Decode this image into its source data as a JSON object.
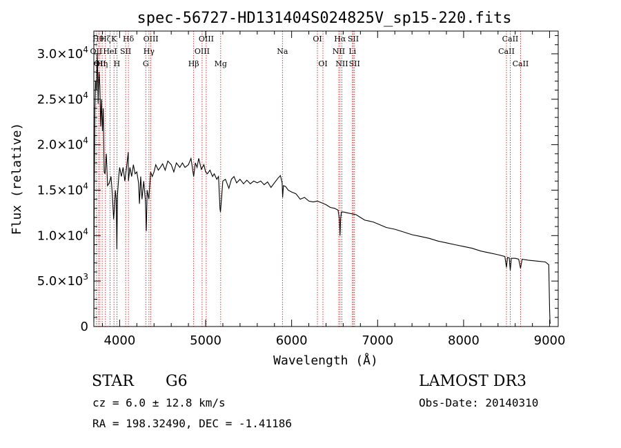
{
  "chart_data": {
    "type": "line",
    "title": "spec-56727-HD131404S024825V_sp15-220.fits",
    "xlabel": "Wavelength (Å)",
    "ylabel": "Flux (relative)",
    "xlim": [
      3700,
      9100
    ],
    "ylim": [
      0,
      32500
    ],
    "x_ticks": [
      4000,
      5000,
      6000,
      7000,
      8000,
      9000
    ],
    "y_ticks": [
      {
        "value": 0,
        "label": "0"
      },
      {
        "value": 5000,
        "label": "5.0×10",
        "exp": "3"
      },
      {
        "value": 10000,
        "label": "1.0×10",
        "exp": "4"
      },
      {
        "value": 15000,
        "label": "1.5×10",
        "exp": "4"
      },
      {
        "value": 20000,
        "label": "2.0×10",
        "exp": "4"
      },
      {
        "value": 25000,
        "label": "2.5×10",
        "exp": "4"
      },
      {
        "value": 30000,
        "label": "3.0×10",
        "exp": "4"
      }
    ],
    "series": [
      {
        "color": "#000000",
        "points": [
          [
            3700,
            500
          ],
          [
            3705,
            15000
          ],
          [
            3712,
            24000
          ],
          [
            3720,
            27000
          ],
          [
            3730,
            26000
          ],
          [
            3740,
            30000
          ],
          [
            3750,
            24500
          ],
          [
            3760,
            28000
          ],
          [
            3770,
            26500
          ],
          [
            3780,
            22000
          ],
          [
            3790,
            25000
          ],
          [
            3800,
            21500
          ],
          [
            3810,
            24000
          ],
          [
            3820,
            17000
          ],
          [
            3830,
            16800
          ],
          [
            3845,
            19000
          ],
          [
            3860,
            15500
          ],
          [
            3880,
            15800
          ],
          [
            3900,
            16500
          ],
          [
            3915,
            14500
          ],
          [
            3930,
            11800
          ],
          [
            3940,
            13000
          ],
          [
            3950,
            15000
          ],
          [
            3960,
            14000
          ],
          [
            3968,
            8500
          ],
          [
            3975,
            14500
          ],
          [
            3990,
            16500
          ],
          [
            4000,
            17500
          ],
          [
            4020,
            16500
          ],
          [
            4040,
            17500
          ],
          [
            4060,
            16000
          ],
          [
            4080,
            17500
          ],
          [
            4100,
            19200
          ],
          [
            4102,
            16000
          ],
          [
            4120,
            17500
          ],
          [
            4140,
            16500
          ],
          [
            4160,
            17800
          ],
          [
            4180,
            16800
          ],
          [
            4200,
            17000
          ],
          [
            4220,
            15800
          ],
          [
            4230,
            13500
          ],
          [
            4245,
            16500
          ],
          [
            4260,
            14000
          ],
          [
            4280,
            16000
          ],
          [
            4300,
            13800
          ],
          [
            4310,
            10500
          ],
          [
            4320,
            15000
          ],
          [
            4340,
            14000
          ],
          [
            4360,
            17000
          ],
          [
            4380,
            16500
          ],
          [
            4400,
            17000
          ],
          [
            4420,
            17800
          ],
          [
            4450,
            17200
          ],
          [
            4480,
            17600
          ],
          [
            4500,
            17900
          ],
          [
            4530,
            17200
          ],
          [
            4560,
            18200
          ],
          [
            4600,
            17800
          ],
          [
            4630,
            17000
          ],
          [
            4660,
            18000
          ],
          [
            4700,
            17500
          ],
          [
            4730,
            18000
          ],
          [
            4760,
            17500
          ],
          [
            4800,
            17800
          ],
          [
            4830,
            18500
          ],
          [
            4861,
            16500
          ],
          [
            4880,
            18000
          ],
          [
            4900,
            17500
          ],
          [
            4920,
            18500
          ],
          [
            4950,
            17300
          ],
          [
            4980,
            17800
          ],
          [
            5000,
            17000
          ],
          [
            5020,
            16800
          ],
          [
            5050,
            17200
          ],
          [
            5080,
            16500
          ],
          [
            5100,
            16800
          ],
          [
            5130,
            16200
          ],
          [
            5150,
            16500
          ],
          [
            5167,
            13000
          ],
          [
            5172,
            12600
          ],
          [
            5183,
            13800
          ],
          [
            5200,
            16000
          ],
          [
            5230,
            16200
          ],
          [
            5270,
            15200
          ],
          [
            5300,
            16200
          ],
          [
            5330,
            16500
          ],
          [
            5360,
            15800
          ],
          [
            5400,
            16200
          ],
          [
            5440,
            15700
          ],
          [
            5480,
            16100
          ],
          [
            5520,
            15700
          ],
          [
            5560,
            16000
          ],
          [
            5600,
            15800
          ],
          [
            5640,
            16000
          ],
          [
            5680,
            15600
          ],
          [
            5720,
            15900
          ],
          [
            5760,
            15300
          ],
          [
            5800,
            15800
          ],
          [
            5840,
            16300
          ],
          [
            5870,
            16600
          ],
          [
            5890,
            15800
          ],
          [
            5895,
            14200
          ],
          [
            5905,
            15500
          ],
          [
            5930,
            15400
          ],
          [
            5960,
            15000
          ],
          [
            6000,
            14800
          ],
          [
            6050,
            14600
          ],
          [
            6100,
            14000
          ],
          [
            6150,
            14200
          ],
          [
            6200,
            13800
          ],
          [
            6250,
            13700
          ],
          [
            6300,
            13800
          ],
          [
            6350,
            13600
          ],
          [
            6400,
            13400
          ],
          [
            6450,
            13100
          ],
          [
            6500,
            13000
          ],
          [
            6540,
            12800
          ],
          [
            6556,
            11800
          ],
          [
            6563,
            10000
          ],
          [
            6570,
            11900
          ],
          [
            6580,
            12600
          ],
          [
            6600,
            12600
          ],
          [
            6650,
            12500
          ],
          [
            6700,
            12400
          ],
          [
            6750,
            12300
          ],
          [
            6800,
            12000
          ],
          [
            6850,
            11700
          ],
          [
            6900,
            11600
          ],
          [
            6950,
            11500
          ],
          [
            7000,
            11300
          ],
          [
            7100,
            10900
          ],
          [
            7200,
            10700
          ],
          [
            7300,
            10400
          ],
          [
            7400,
            10100
          ],
          [
            7500,
            9900
          ],
          [
            7600,
            9700
          ],
          [
            7700,
            9400
          ],
          [
            7800,
            9200
          ],
          [
            7900,
            9000
          ],
          [
            8000,
            8800
          ],
          [
            8100,
            8600
          ],
          [
            8200,
            8300
          ],
          [
            8300,
            8100
          ],
          [
            8400,
            7900
          ],
          [
            8480,
            7700
          ],
          [
            8498,
            6500
          ],
          [
            8510,
            7600
          ],
          [
            8530,
            7550
          ],
          [
            8542,
            6200
          ],
          [
            8555,
            7500
          ],
          [
            8600,
            7500
          ],
          [
            8640,
            7400
          ],
          [
            8662,
            6400
          ],
          [
            8680,
            7400
          ],
          [
            8750,
            7300
          ],
          [
            8850,
            7200
          ],
          [
            8950,
            7100
          ],
          [
            8990,
            6800
          ],
          [
            9000,
            2000
          ],
          [
            9005,
            300
          ]
        ]
      }
    ],
    "line_markers": [
      {
        "wavelength": 3727,
        "label": "OII",
        "row": 1
      },
      {
        "wavelength": 3750,
        "label": "Hθ",
        "row": 0
      },
      {
        "wavelength": 3770,
        "label": "OII",
        "row": 2
      },
      {
        "wavelength": 3797,
        "label": "Hη",
        "row": 2
      },
      {
        "wavelength": 3835,
        "label": "Hζ",
        "row": 0
      },
      {
        "wavelength": 3889,
        "label": "HeI",
        "row": 1
      },
      {
        "wavelength": 3934,
        "label": "K",
        "row": 0
      },
      {
        "wavelength": 3968,
        "label": "H",
        "row": 2
      },
      {
        "wavelength": 4070,
        "label": "SII",
        "row": 1
      },
      {
        "wavelength": 4102,
        "label": "Hδ",
        "row": 0
      },
      {
        "wavelength": 4304,
        "label": "G",
        "row": 2
      },
      {
        "wavelength": 4341,
        "label": "Hγ",
        "row": 1
      },
      {
        "wavelength": 4363,
        "label": "OIII",
        "row": 0
      },
      {
        "wavelength": 4861,
        "label": "Hβ",
        "row": 2
      },
      {
        "wavelength": 4959,
        "label": "OIII",
        "row": 1
      },
      {
        "wavelength": 5007,
        "label": "OIII",
        "row": 0
      },
      {
        "wavelength": 5175,
        "label": "Mg",
        "row": 2
      },
      {
        "wavelength": 5893,
        "label": "Na",
        "row": 1
      },
      {
        "wavelength": 6300,
        "label": "OI",
        "row": 0
      },
      {
        "wavelength": 6364,
        "label": "OI",
        "row": 2
      },
      {
        "wavelength": 6548,
        "label": "NII",
        "row": 1
      },
      {
        "wavelength": 6563,
        "label": "Hα",
        "row": 0
      },
      {
        "wavelength": 6584,
        "label": "NII",
        "row": 2
      },
      {
        "wavelength": 6707,
        "label": "Li",
        "row": 1
      },
      {
        "wavelength": 6717,
        "label": "SII",
        "row": 0
      },
      {
        "wavelength": 6731,
        "label": "SII",
        "row": 2
      },
      {
        "wavelength": 8498,
        "label": "CaII",
        "row": 1
      },
      {
        "wavelength": 8542,
        "label": "CaII",
        "row": 0
      },
      {
        "wavelength": 8662,
        "label": "CaII",
        "row": 2
      }
    ],
    "grid": false,
    "marker_color": "#cc0000"
  },
  "info": {
    "class_label": "STAR",
    "subclass": "G6",
    "survey": "LAMOST DR3",
    "cz": "cz = 6.0 ± 12.8 km/s",
    "obs_date": "Obs-Date: 20140310",
    "coords": "RA = 198.32490, DEC =  -1.41186"
  }
}
